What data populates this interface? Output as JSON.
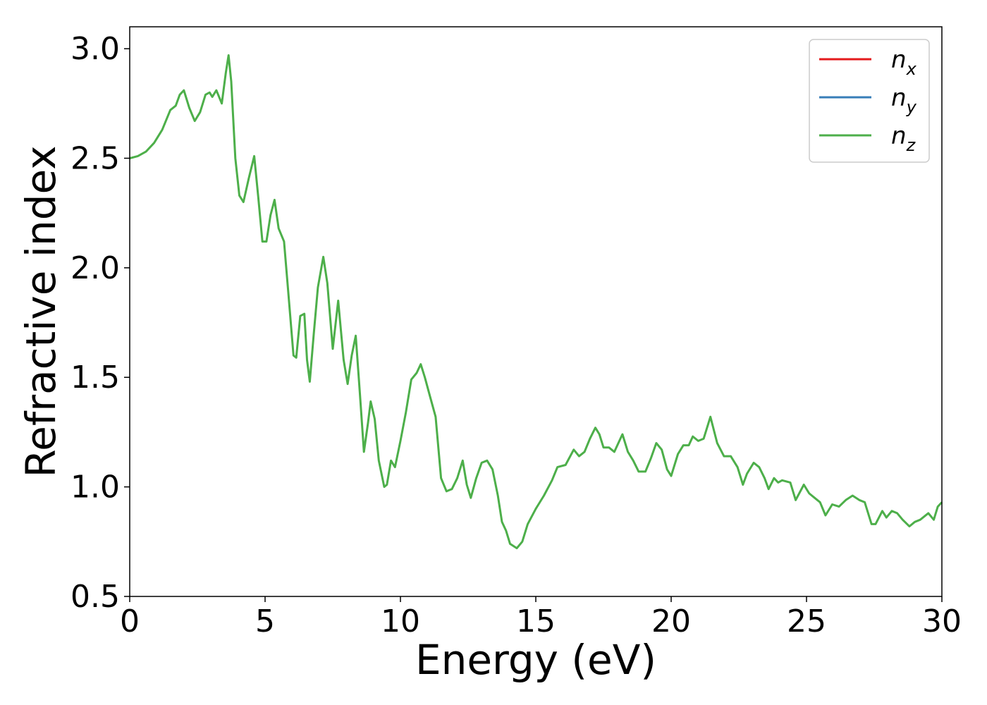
{
  "chart_data": {
    "type": "line",
    "xlabel": "Energy (eV)",
    "ylabel": "Refractive index",
    "xlim": [
      0,
      30
    ],
    "ylim": [
      0.5,
      3.1
    ],
    "xticks": [
      "0",
      "5",
      "10",
      "15",
      "20",
      "25",
      "30"
    ],
    "yticks": [
      "0.5",
      "1.0",
      "1.5",
      "2.0",
      "2.5",
      "3.0"
    ],
    "grid": false,
    "legend_position": "top-right",
    "series": [
      {
        "name": "n",
        "subscript": "x",
        "color": "#e41a1c",
        "points": []
      },
      {
        "name": "n",
        "subscript": "y",
        "color": "#377eb8",
        "points": []
      },
      {
        "name": "n",
        "subscript": "z",
        "color": "#4daf4a",
        "points": [
          [
            0.0,
            2.5
          ],
          [
            0.3,
            2.51
          ],
          [
            0.6,
            2.53
          ],
          [
            0.9,
            2.57
          ],
          [
            1.2,
            2.63
          ],
          [
            1.5,
            2.72
          ],
          [
            1.7,
            2.74
          ],
          [
            1.85,
            2.79
          ],
          [
            2.0,
            2.81
          ],
          [
            2.2,
            2.73
          ],
          [
            2.4,
            2.67
          ],
          [
            2.6,
            2.71
          ],
          [
            2.8,
            2.79
          ],
          [
            2.95,
            2.8
          ],
          [
            3.05,
            2.78
          ],
          [
            3.2,
            2.81
          ],
          [
            3.4,
            2.75
          ],
          [
            3.55,
            2.89
          ],
          [
            3.65,
            2.97
          ],
          [
            3.75,
            2.85
          ],
          [
            3.9,
            2.5
          ],
          [
            4.05,
            2.33
          ],
          [
            4.2,
            2.3
          ],
          [
            4.4,
            2.41
          ],
          [
            4.6,
            2.51
          ],
          [
            4.75,
            2.32
          ],
          [
            4.9,
            2.12
          ],
          [
            5.05,
            2.12
          ],
          [
            5.2,
            2.24
          ],
          [
            5.35,
            2.31
          ],
          [
            5.5,
            2.18
          ],
          [
            5.7,
            2.12
          ],
          [
            5.85,
            1.9
          ],
          [
            6.05,
            1.6
          ],
          [
            6.15,
            1.59
          ],
          [
            6.3,
            1.78
          ],
          [
            6.45,
            1.79
          ],
          [
            6.55,
            1.58
          ],
          [
            6.65,
            1.48
          ],
          [
            6.8,
            1.7
          ],
          [
            6.95,
            1.91
          ],
          [
            7.15,
            2.05
          ],
          [
            7.3,
            1.93
          ],
          [
            7.5,
            1.63
          ],
          [
            7.7,
            1.85
          ],
          [
            7.9,
            1.58
          ],
          [
            8.05,
            1.47
          ],
          [
            8.2,
            1.6
          ],
          [
            8.35,
            1.69
          ],
          [
            8.5,
            1.43
          ],
          [
            8.65,
            1.16
          ],
          [
            8.8,
            1.29
          ],
          [
            8.9,
            1.39
          ],
          [
            9.05,
            1.31
          ],
          [
            9.2,
            1.12
          ],
          [
            9.4,
            1.0
          ],
          [
            9.5,
            1.01
          ],
          [
            9.65,
            1.12
          ],
          [
            9.8,
            1.09
          ],
          [
            10.0,
            1.21
          ],
          [
            10.2,
            1.34
          ],
          [
            10.4,
            1.49
          ],
          [
            10.6,
            1.52
          ],
          [
            10.75,
            1.56
          ],
          [
            10.9,
            1.5
          ],
          [
            11.1,
            1.41
          ],
          [
            11.3,
            1.32
          ],
          [
            11.5,
            1.04
          ],
          [
            11.7,
            0.98
          ],
          [
            11.9,
            0.99
          ],
          [
            12.1,
            1.04
          ],
          [
            12.3,
            1.12
          ],
          [
            12.45,
            1.01
          ],
          [
            12.6,
            0.95
          ],
          [
            12.8,
            1.04
          ],
          [
            13.0,
            1.11
          ],
          [
            13.2,
            1.12
          ],
          [
            13.4,
            1.08
          ],
          [
            13.6,
            0.96
          ],
          [
            13.75,
            0.84
          ],
          [
            13.9,
            0.8
          ],
          [
            14.05,
            0.74
          ],
          [
            14.3,
            0.72
          ],
          [
            14.5,
            0.75
          ],
          [
            14.7,
            0.83
          ],
          [
            15.0,
            0.9
          ],
          [
            15.3,
            0.96
          ],
          [
            15.6,
            1.03
          ],
          [
            15.8,
            1.09
          ],
          [
            16.1,
            1.1
          ],
          [
            16.4,
            1.17
          ],
          [
            16.6,
            1.14
          ],
          [
            16.8,
            1.16
          ],
          [
            17.0,
            1.22
          ],
          [
            17.2,
            1.27
          ],
          [
            17.35,
            1.24
          ],
          [
            17.5,
            1.18
          ],
          [
            17.7,
            1.18
          ],
          [
            17.9,
            1.16
          ],
          [
            18.05,
            1.2
          ],
          [
            18.2,
            1.24
          ],
          [
            18.4,
            1.16
          ],
          [
            18.6,
            1.12
          ],
          [
            18.8,
            1.07
          ],
          [
            19.05,
            1.07
          ],
          [
            19.25,
            1.13
          ],
          [
            19.45,
            1.2
          ],
          [
            19.65,
            1.17
          ],
          [
            19.85,
            1.08
          ],
          [
            20.0,
            1.05
          ],
          [
            20.25,
            1.15
          ],
          [
            20.45,
            1.19
          ],
          [
            20.65,
            1.19
          ],
          [
            20.8,
            1.23
          ],
          [
            21.0,
            1.21
          ],
          [
            21.2,
            1.22
          ],
          [
            21.45,
            1.32
          ],
          [
            21.7,
            1.2
          ],
          [
            21.95,
            1.14
          ],
          [
            22.2,
            1.14
          ],
          [
            22.45,
            1.09
          ],
          [
            22.65,
            1.01
          ],
          [
            22.8,
            1.06
          ],
          [
            23.05,
            1.11
          ],
          [
            23.25,
            1.09
          ],
          [
            23.45,
            1.04
          ],
          [
            23.6,
            0.99
          ],
          [
            23.8,
            1.04
          ],
          [
            23.95,
            1.02
          ],
          [
            24.1,
            1.03
          ],
          [
            24.4,
            1.02
          ],
          [
            24.6,
            0.94
          ],
          [
            24.9,
            1.01
          ],
          [
            25.1,
            0.97
          ],
          [
            25.3,
            0.95
          ],
          [
            25.5,
            0.93
          ],
          [
            25.7,
            0.87
          ],
          [
            25.95,
            0.92
          ],
          [
            26.2,
            0.91
          ],
          [
            26.45,
            0.94
          ],
          [
            26.7,
            0.96
          ],
          [
            26.95,
            0.94
          ],
          [
            27.15,
            0.93
          ],
          [
            27.4,
            0.83
          ],
          [
            27.55,
            0.83
          ],
          [
            27.8,
            0.89
          ],
          [
            27.95,
            0.86
          ],
          [
            28.15,
            0.89
          ],
          [
            28.35,
            0.88
          ],
          [
            28.55,
            0.85
          ],
          [
            28.8,
            0.82
          ],
          [
            29.0,
            0.84
          ],
          [
            29.2,
            0.85
          ],
          [
            29.5,
            0.88
          ],
          [
            29.7,
            0.85
          ],
          [
            29.85,
            0.91
          ],
          [
            30.0,
            0.93
          ]
        ]
      }
    ]
  }
}
